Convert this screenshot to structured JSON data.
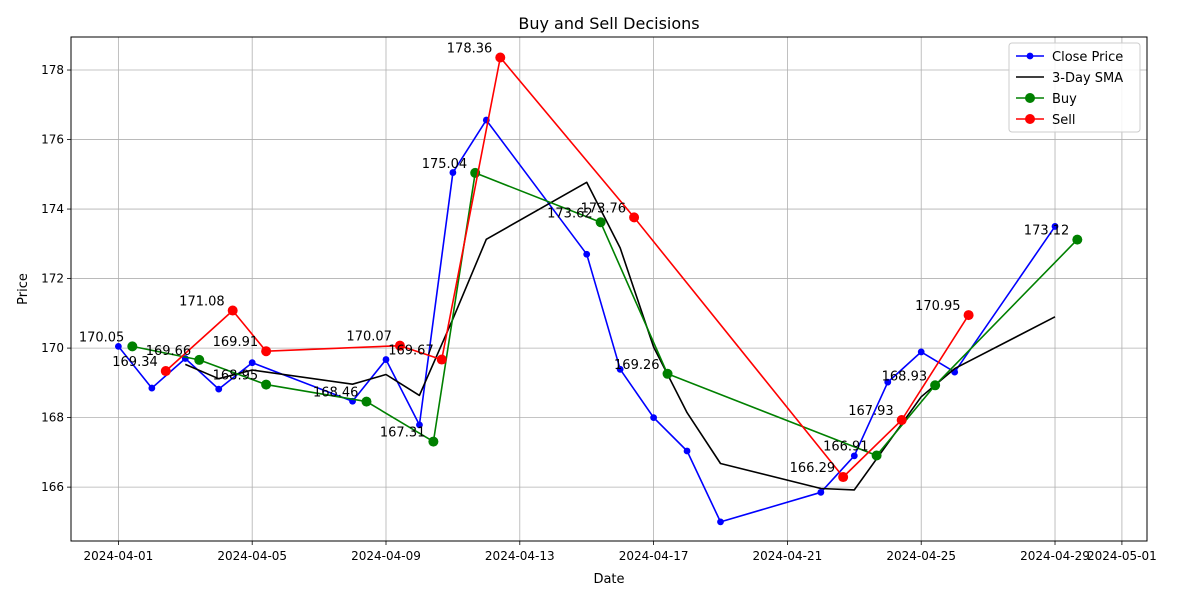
{
  "chart_data": {
    "type": "line",
    "title": "Buy and Sell Decisions",
    "xlabel": "Date",
    "ylabel": "Price",
    "xlim": [
      "2024-03-30T14:00",
      "2024-05-01T18:00"
    ],
    "ylim": [
      164.45,
      178.95
    ],
    "x_ticks": [
      "2024-04-01",
      "2024-04-05",
      "2024-04-09",
      "2024-04-13",
      "2024-04-17",
      "2024-04-21",
      "2024-04-25",
      "2024-04-29",
      "2024-05-01"
    ],
    "y_ticks": [
      166,
      168,
      170,
      172,
      174,
      176,
      178
    ],
    "grid": true,
    "legend_position": "top-right",
    "series": [
      {
        "name": "Close Price",
        "color": "#0000ff",
        "marker": "circle",
        "points": [
          {
            "x": "2024-04-01",
            "y": 170.05
          },
          {
            "x": "2024-04-02",
            "y": 168.85
          },
          {
            "x": "2024-04-03",
            "y": 169.7
          },
          {
            "x": "2024-04-04",
            "y": 168.82
          },
          {
            "x": "2024-04-05",
            "y": 169.58
          },
          {
            "x": "2024-04-08",
            "y": 168.47
          },
          {
            "x": "2024-04-09",
            "y": 169.67
          },
          {
            "x": "2024-04-10",
            "y": 167.79
          },
          {
            "x": "2024-04-11",
            "y": 175.05
          },
          {
            "x": "2024-04-12",
            "y": 176.56
          },
          {
            "x": "2024-04-15",
            "y": 172.7
          },
          {
            "x": "2024-04-16",
            "y": 169.39
          },
          {
            "x": "2024-04-17",
            "y": 168.0
          },
          {
            "x": "2024-04-18",
            "y": 167.04
          },
          {
            "x": "2024-04-19",
            "y": 165.0
          },
          {
            "x": "2024-04-22",
            "y": 165.85
          },
          {
            "x": "2024-04-23",
            "y": 166.9
          },
          {
            "x": "2024-04-24",
            "y": 169.02
          },
          {
            "x": "2024-04-25",
            "y": 169.89
          },
          {
            "x": "2024-04-26",
            "y": 169.31
          },
          {
            "x": "2024-04-29",
            "y": 173.5
          }
        ]
      },
      {
        "name": "3-Day SMA",
        "color": "#000000",
        "marker": "none",
        "points": [
          {
            "x": "2024-04-03",
            "y": 169.53
          },
          {
            "x": "2024-04-04",
            "y": 169.12
          },
          {
            "x": "2024-04-05",
            "y": 169.37
          },
          {
            "x": "2024-04-08",
            "y": 168.96
          },
          {
            "x": "2024-04-09",
            "y": 169.24
          },
          {
            "x": "2024-04-10",
            "y": 168.64
          },
          {
            "x": "2024-04-11",
            "y": 170.84
          },
          {
            "x": "2024-04-12",
            "y": 173.13
          },
          {
            "x": "2024-04-15",
            "y": 174.77
          },
          {
            "x": "2024-04-16",
            "y": 172.88
          },
          {
            "x": "2024-04-17",
            "y": 170.03
          },
          {
            "x": "2024-04-18",
            "y": 168.14
          },
          {
            "x": "2024-04-19",
            "y": 166.68
          },
          {
            "x": "2024-04-22",
            "y": 165.96
          },
          {
            "x": "2024-04-23",
            "y": 165.92
          },
          {
            "x": "2024-04-24",
            "y": 167.26
          },
          {
            "x": "2024-04-25",
            "y": 168.6
          },
          {
            "x": "2024-04-26",
            "y": 169.41
          },
          {
            "x": "2024-04-29",
            "y": 170.9
          }
        ]
      },
      {
        "name": "Buy",
        "color": "#008000",
        "marker": "circle-large",
        "points": [
          {
            "x": "2024-04-01T10:00",
            "y": 170.05,
            "label": "170.05"
          },
          {
            "x": "2024-04-03T10:00",
            "y": 169.66,
            "label": "169.66"
          },
          {
            "x": "2024-04-05T10:00",
            "y": 168.95,
            "label": "168.95"
          },
          {
            "x": "2024-04-08T10:00",
            "y": 168.46,
            "label": "168.46"
          },
          {
            "x": "2024-04-10T10:00",
            "y": 167.31,
            "label": "167.31"
          },
          {
            "x": "2024-04-11T16:00",
            "y": 175.04,
            "label": "175.04"
          },
          {
            "x": "2024-04-15T10:00",
            "y": 173.62,
            "label": "173.62"
          },
          {
            "x": "2024-04-17T10:00",
            "y": 169.26,
            "label": "169.26"
          },
          {
            "x": "2024-04-23T16:00",
            "y": 166.91,
            "label": "166.91"
          },
          {
            "x": "2024-04-25T10:00",
            "y": 168.93,
            "label": "168.93"
          },
          {
            "x": "2024-04-29T16:00",
            "y": 173.12,
            "label": "173.12"
          }
        ]
      },
      {
        "name": "Sell",
        "color": "#ff0000",
        "marker": "circle-large",
        "points": [
          {
            "x": "2024-04-02T10:00",
            "y": 169.34,
            "label": "169.34"
          },
          {
            "x": "2024-04-04T10:00",
            "y": 171.08,
            "label": "171.08"
          },
          {
            "x": "2024-04-05T10:00",
            "y": 169.91,
            "label": "169.91"
          },
          {
            "x": "2024-04-09T10:00",
            "y": 170.07,
            "label": "170.07"
          },
          {
            "x": "2024-04-10T16:00",
            "y": 169.67,
            "label": "169.67"
          },
          {
            "x": "2024-04-12T10:00",
            "y": 178.36,
            "label": "178.36"
          },
          {
            "x": "2024-04-16T10:00",
            "y": 173.76,
            "label": "173.76"
          },
          {
            "x": "2024-04-22T16:00",
            "y": 166.29,
            "label": "166.29"
          },
          {
            "x": "2024-04-24T10:00",
            "y": 167.93,
            "label": "167.93"
          },
          {
            "x": "2024-04-26T10:00",
            "y": 170.95,
            "label": "170.95"
          }
        ]
      }
    ]
  }
}
